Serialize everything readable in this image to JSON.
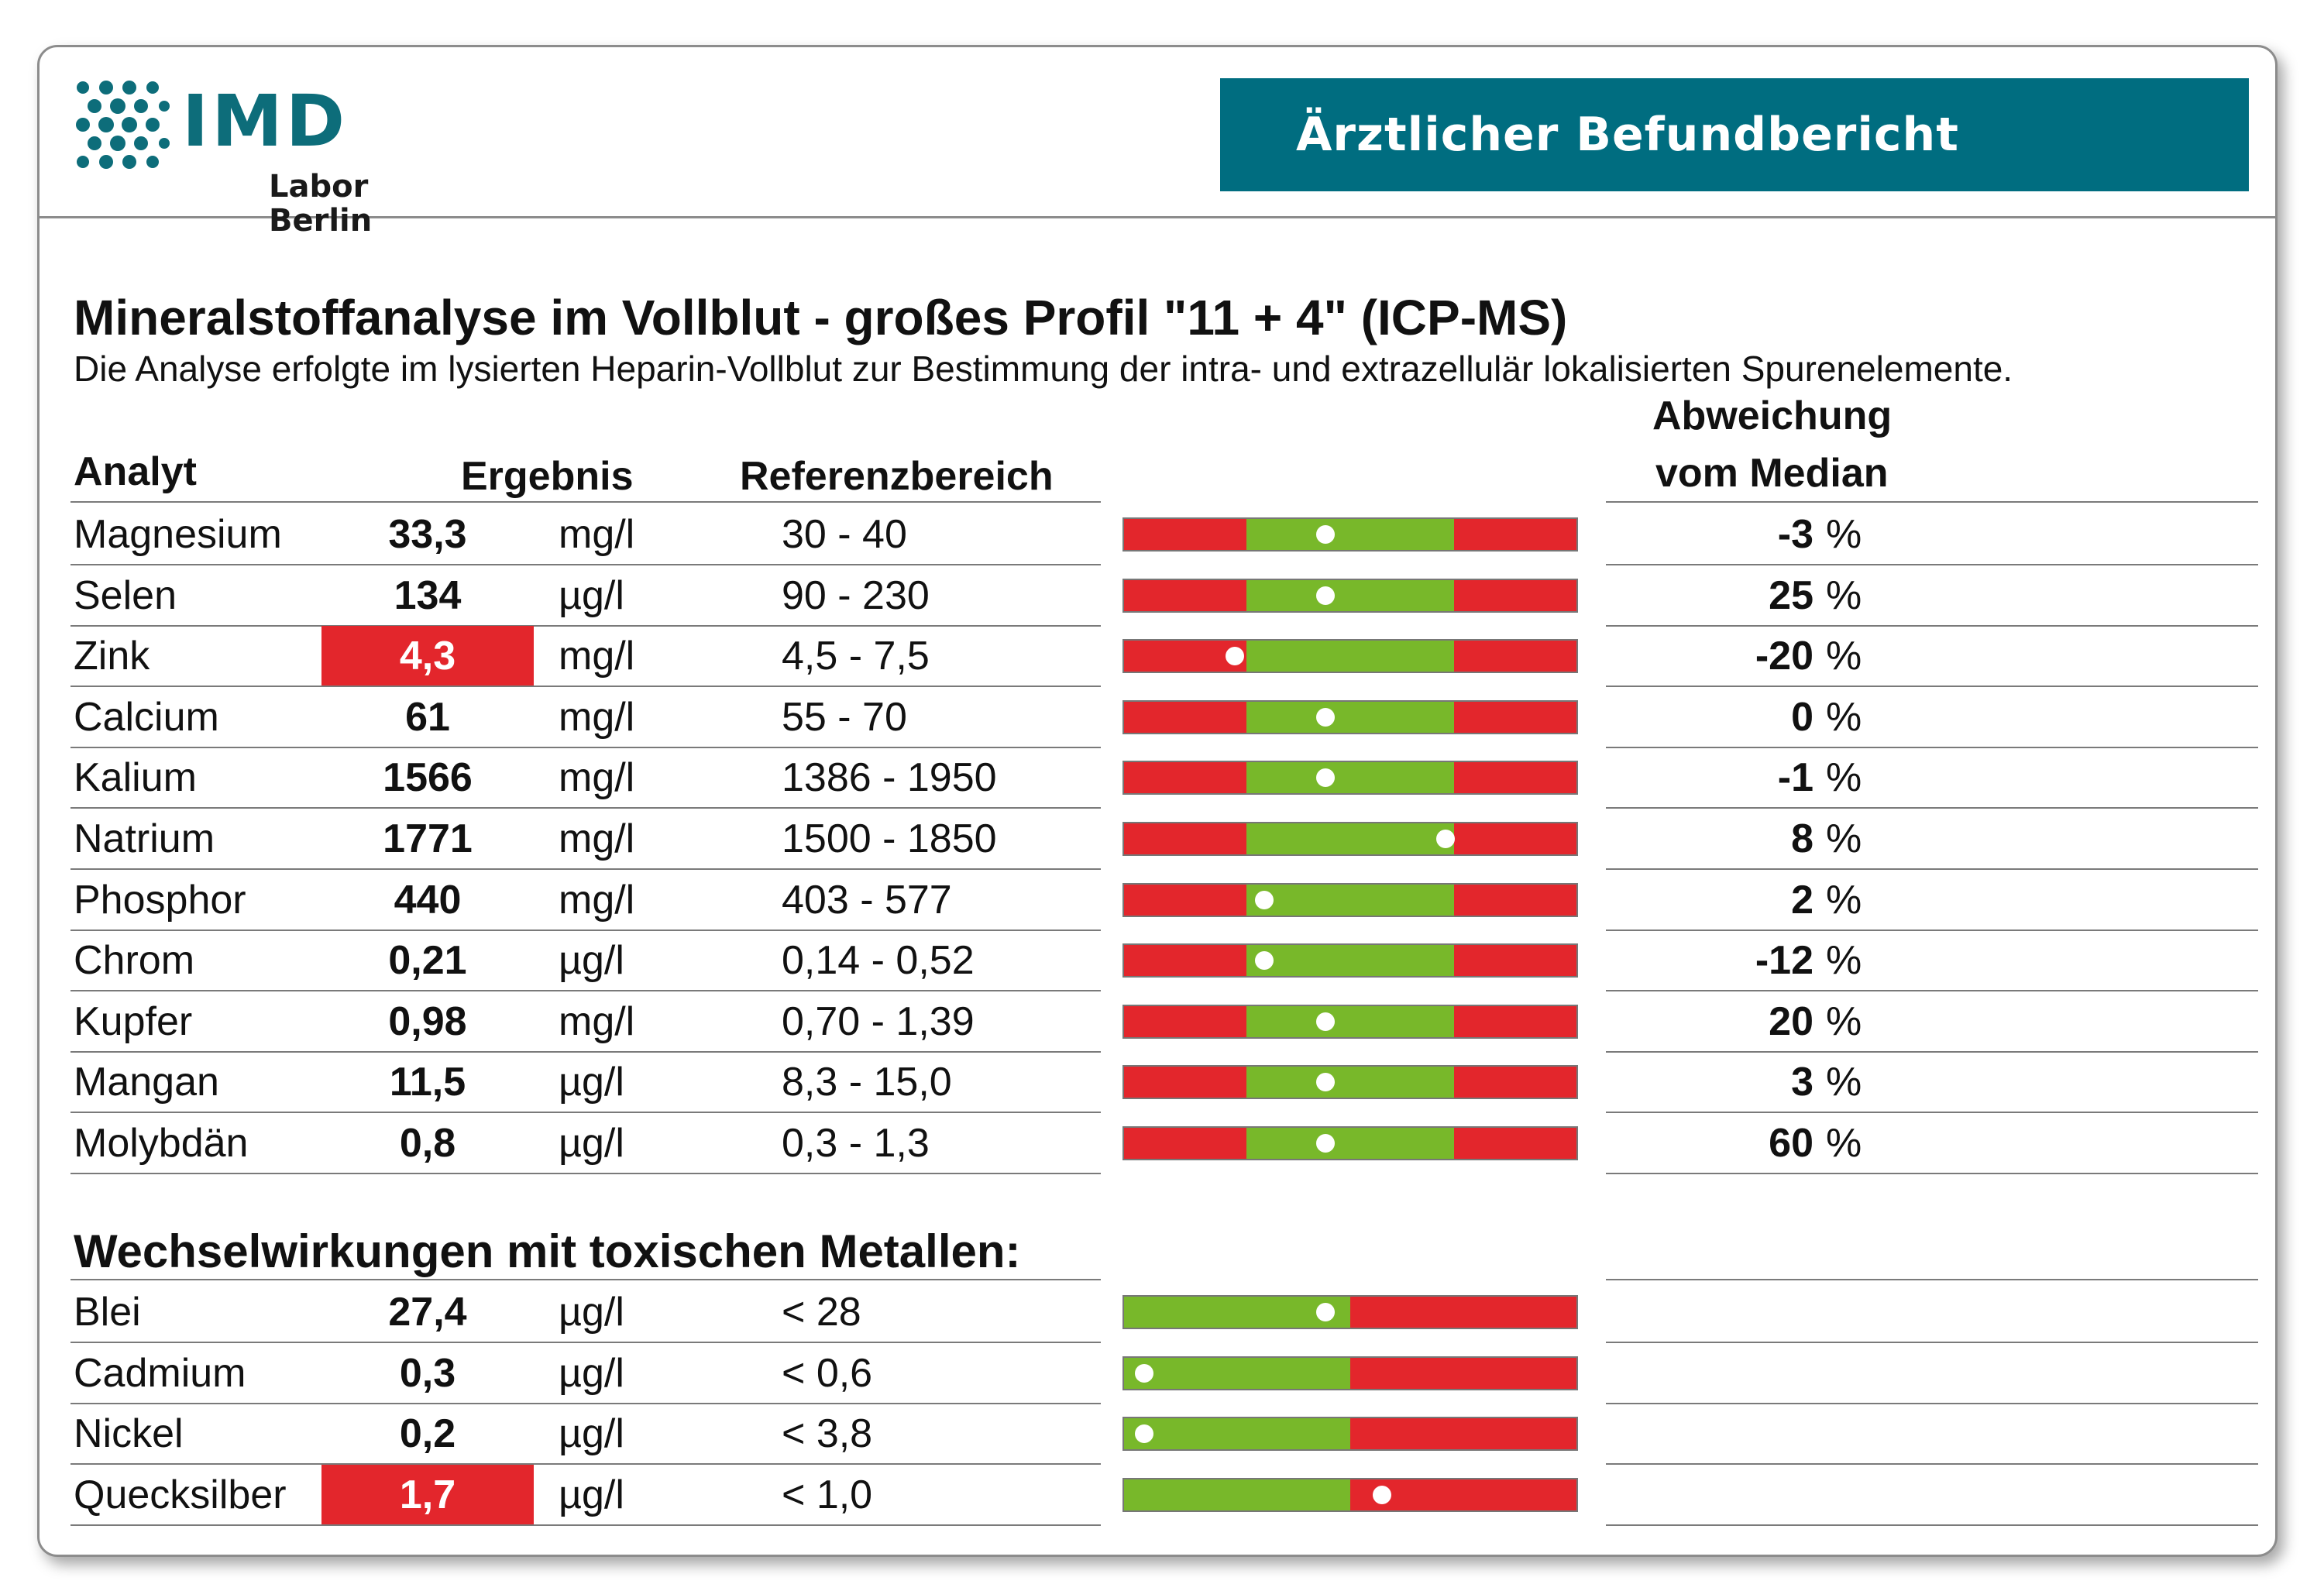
{
  "header": {
    "logo_text": "IMD",
    "logo_sub": "Labor Berlin",
    "banner_title": "Ärztlicher Befundbericht"
  },
  "report": {
    "title": "Mineralstoffanalyse im Vollblut - großes Profil \"11 + 4\" (ICP-MS)",
    "subtitle": "Die Analyse erfolgte im lysierten Heparin-Vollblut zur Bestimmung der intra- und extrazellulär lokalisierten Spurenelemente."
  },
  "columns": {
    "analyt": "Analyt",
    "ergebnis": "Ergebnis",
    "referenz": "Referenzbereich",
    "abweichung_1": "Abweichung",
    "abweichung_2": "vom Median"
  },
  "colors": {
    "red": "#e3262c",
    "green": "#78b82a",
    "brand": "#006d80"
  },
  "minerals": [
    {
      "name": "Magnesium",
      "result": "33,3",
      "unit": "mg/l",
      "ref": "30 - 40",
      "deviation": "-3",
      "pct": "%",
      "flag": false,
      "marker": 0.445
    },
    {
      "name": "Selen",
      "result": "134",
      "unit": "µg/l",
      "ref": "90 - 230",
      "deviation": "25",
      "pct": "%",
      "flag": false,
      "marker": 0.445
    },
    {
      "name": "Zink",
      "result": "4,3",
      "unit": "mg/l",
      "ref": "4,5 - 7,5",
      "deviation": "-20",
      "pct": "%",
      "flag": true,
      "marker": 0.245
    },
    {
      "name": "Calcium",
      "result": "61",
      "unit": "mg/l",
      "ref": "55 - 70",
      "deviation": "0",
      "pct": "%",
      "flag": false,
      "marker": 0.445
    },
    {
      "name": "Kalium",
      "result": "1566",
      "unit": "mg/l",
      "ref": "1386 - 1950",
      "deviation": "-1",
      "pct": "%",
      "flag": false,
      "marker": 0.445
    },
    {
      "name": "Natrium",
      "result": "1771",
      "unit": "mg/l",
      "ref": "1500 - 1850",
      "deviation": "8",
      "pct": "%",
      "flag": false,
      "marker": 0.71
    },
    {
      "name": "Phosphor",
      "result": "440",
      "unit": "mg/l",
      "ref": "403 - 577",
      "deviation": "2",
      "pct": "%",
      "flag": false,
      "marker": 0.31
    },
    {
      "name": "Chrom",
      "result": "0,21",
      "unit": "µg/l",
      "ref": "0,14 - 0,52",
      "deviation": "-12",
      "pct": "%",
      "flag": false,
      "marker": 0.31
    },
    {
      "name": "Kupfer",
      "result": "0,98",
      "unit": "mg/l",
      "ref": "0,70 - 1,39",
      "deviation": "20",
      "pct": "%",
      "flag": false,
      "marker": 0.445
    },
    {
      "name": "Mangan",
      "result": "11,5",
      "unit": "µg/l",
      "ref": "8,3 - 15,0",
      "deviation": "3",
      "pct": "%",
      "flag": false,
      "marker": 0.445
    },
    {
      "name": "Molybdän",
      "result": "0,8",
      "unit": "µg/l",
      "ref": "0,3 - 1,3",
      "deviation": "60",
      "pct": "%",
      "flag": false,
      "marker": 0.445
    }
  ],
  "toxic_section_title": "Wechselwirkungen mit toxischen Metallen:",
  "toxic": [
    {
      "name": "Blei",
      "result": "27,4",
      "unit": "µg/l",
      "ref": "< 28",
      "flag": false,
      "marker": 0.445
    },
    {
      "name": "Cadmium",
      "result": "0,3",
      "unit": "µg/l",
      "ref": "< 0,6",
      "flag": false,
      "marker": 0.045
    },
    {
      "name": "Nickel",
      "result": "0,2",
      "unit": "µg/l",
      "ref": "< 3,8",
      "flag": false,
      "marker": 0.045
    },
    {
      "name": "Quecksilber",
      "result": "1,7",
      "unit": "µg/l",
      "ref": "< 1,0",
      "flag": true,
      "marker": 0.57
    }
  ]
}
